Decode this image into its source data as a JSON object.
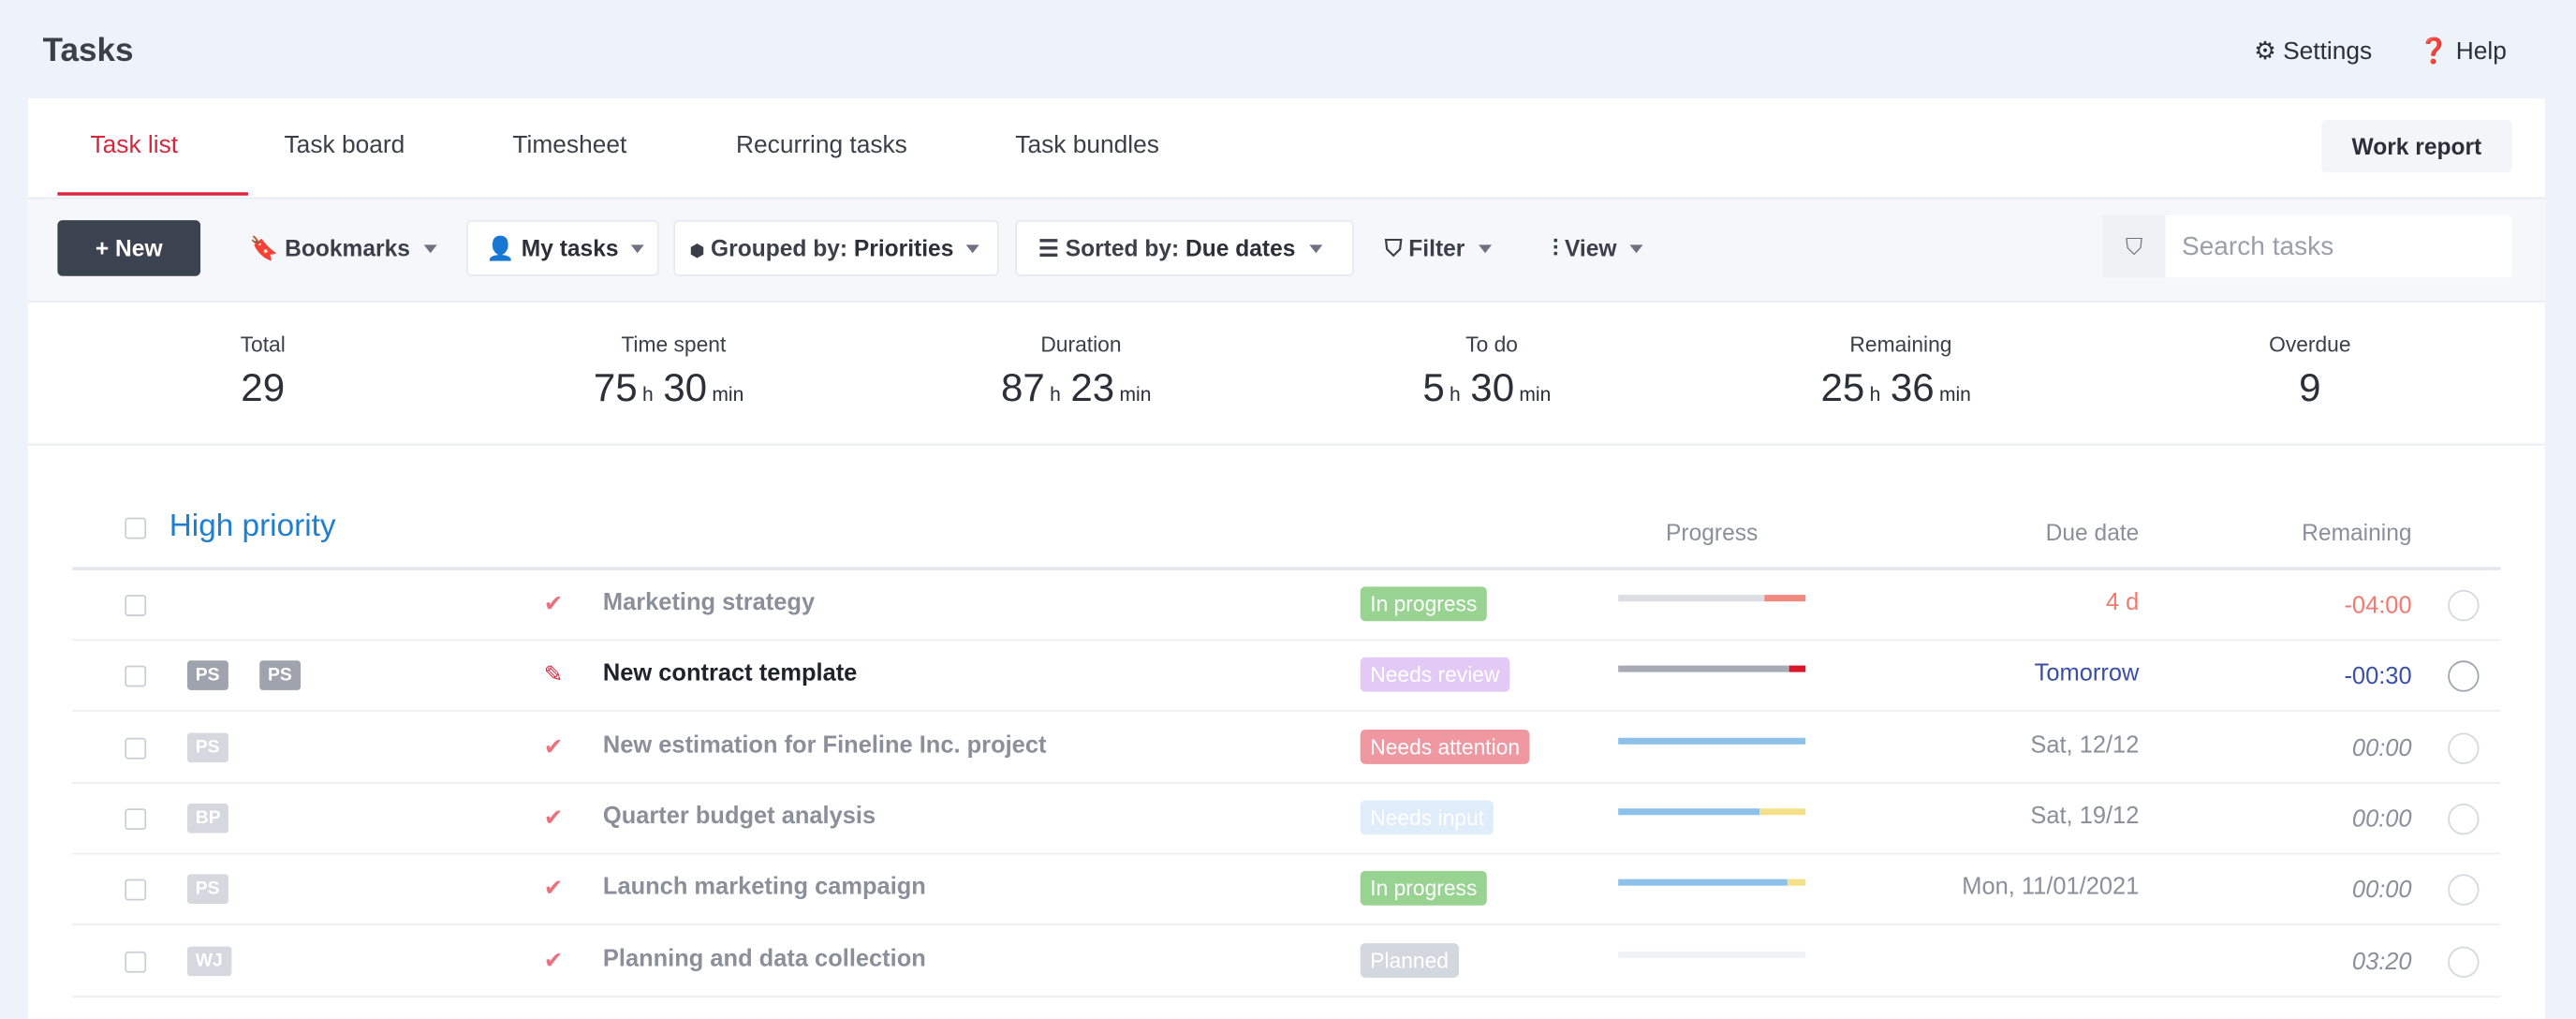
{
  "header": {
    "title": "Tasks",
    "nav": [
      "Settings",
      "Help"
    ]
  },
  "tabs": {
    "items": [
      "Task list",
      "Task board",
      "Timesheet",
      "Recurring tasks",
      "Task bundles"
    ],
    "active": 0,
    "action": "Work report"
  },
  "toolbar": {
    "new": "New",
    "bookmarks": "Bookmarks",
    "my_tasks": "My tasks",
    "grouped_prefix": "Grouped by:",
    "grouped": "Priorities",
    "sorted_prefix": "Sorted by:",
    "sorted": "Due dates",
    "filter": "Filter",
    "view": "View",
    "search": "Search tasks"
  },
  "stats": [
    {
      "label": "Total",
      "parts": [
        29
      ]
    },
    {
      "label": "Time spent",
      "parts": [
        75,
        "h",
        30,
        "min"
      ]
    },
    {
      "label": "Duration",
      "parts": [
        87,
        "h",
        23,
        "min"
      ]
    },
    {
      "label": "To do",
      "parts": [
        5,
        "h",
        30,
        "min"
      ]
    },
    {
      "label": "Remaining",
      "parts": [
        25,
        "h",
        36,
        "min"
      ]
    },
    {
      "label": "Overdue",
      "parts": [
        9
      ]
    }
  ],
  "group": {
    "title": "High priority",
    "columns": [
      "Progress",
      "Due date",
      "Remaining"
    ]
  },
  "rows": [
    {
      "badges": [],
      "title": "Marketing strategy",
      "status": "In progress",
      "status_color": "#8fcf86",
      "progress": [
        {
          "color": "#dcdee3",
          "value": 78
        },
        {
          "color": "#f08a80",
          "value": 22
        }
      ],
      "due": "4 d",
      "due_color": "#f07a70",
      "remaining": "-04:00",
      "remaining_color": "#f07a70"
    },
    {
      "badges": [
        "PS",
        "PS"
      ],
      "title": "New contract template",
      "status": "Needs review",
      "status_color": "#e3c9f6",
      "progress": [
        {
          "color": "#a6abb6",
          "value": 91
        },
        {
          "color": "#d9162a",
          "value": 9
        }
      ],
      "due": "Tomorrow",
      "due_color": "#3a4fa8",
      "remaining": "-00:30",
      "remaining_color": "#3a4fa8"
    },
    {
      "badges": [
        "PS"
      ],
      "title": "New estimation for Fineline Inc. project",
      "status": "Needs attention",
      "status_color": "#ee8d98",
      "progress": [
        {
          "color": "#8ec1ea",
          "value": 100
        }
      ],
      "due": "Sat, 12/12",
      "due_color": "#8a8f99",
      "remaining": "00:00",
      "remaining_color": "#8a8f99"
    },
    {
      "badges": [
        "BP"
      ],
      "title": "Quarter budget analysis",
      "status": "Needs input",
      "status_color": "#dcecfa",
      "progress": [
        {
          "color": "#8ec1ea",
          "value": 75
        },
        {
          "color": "#f5e08a",
          "value": 25
        }
      ],
      "due": "Sat, 19/12",
      "due_color": "#8a8f99",
      "remaining": "00:00",
      "remaining_color": "#8a8f99"
    },
    {
      "badges": [
        "PS"
      ],
      "title": "Launch marketing campaign",
      "status": "In progress",
      "status_color": "#8fcf86",
      "progress": [
        {
          "color": "#8ec1ea",
          "value": 90
        },
        {
          "color": "#f5e08a",
          "value": 10
        }
      ],
      "due": "Mon, 11/01/2021",
      "due_color": "#8a8f99",
      "remaining": "00:00",
      "remaining_color": "#8a8f99"
    },
    {
      "badges": [
        "WJ"
      ],
      "title": "Planning and data collection",
      "status": "Planned",
      "status_color": "#cfd3db",
      "progress": [
        {
          "color": "#f1f2f4",
          "value": 100
        }
      ],
      "due": "",
      "due_color": "#8a8f99",
      "remaining": "03:20",
      "remaining_color": "#8a8f99"
    }
  ]
}
